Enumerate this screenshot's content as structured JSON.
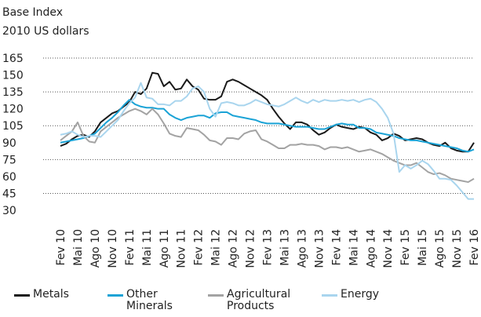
{
  "chart_data": {
    "type": "line",
    "title": "Base Index",
    "subtitle": "2010 US dollars",
    "categories": [
      "Fev 10",
      null,
      null,
      "Mai 10",
      null,
      null,
      "Ago 10",
      null,
      null,
      "Nov 10",
      null,
      null,
      "Fev 11",
      null,
      null,
      "Mai 11",
      null,
      null,
      "Ago 11",
      null,
      null,
      "Nov 11",
      null,
      null,
      "Fev 12",
      null,
      null,
      "Mai 12",
      null,
      null,
      "Ago 12",
      null,
      null,
      "Nov 12",
      null,
      null,
      "Fev 13",
      null,
      null,
      "Mai 13",
      null,
      null,
      "Ago 13",
      null,
      null,
      "Nov 13",
      null,
      null,
      "Fev 14",
      null,
      null,
      "Mai 14",
      null,
      null,
      "Ago 14",
      null,
      null,
      "Nov 14",
      null,
      null,
      "Fev 15",
      null,
      null,
      "Mai 15",
      null,
      null,
      "Ago 15",
      null,
      null,
      "Nov 15",
      null,
      null,
      "Fev 16"
    ],
    "series": [
      {
        "name": "Metals",
        "color": "#1a1a1a",
        "values": [
          87,
          89,
          93,
          96,
          97,
          95,
          100,
          108,
          112,
          116,
          118,
          122,
          126,
          135,
          133,
          138,
          152,
          151,
          140,
          144,
          137,
          138,
          146,
          140,
          137,
          129,
          128,
          128,
          131,
          144,
          146,
          144,
          141,
          138,
          135,
          132,
          128,
          120,
          113,
          107,
          102,
          108,
          108,
          106,
          101,
          97,
          99,
          103,
          106,
          104,
          103,
          102,
          104,
          103,
          99,
          97,
          92,
          94,
          98,
          96,
          92,
          93,
          94,
          93,
          90,
          88,
          87,
          90,
          85,
          83,
          82,
          82,
          90
        ]
      },
      {
        "name": "Other Minerals",
        "color": "#1ba3d6",
        "values": [
          90,
          91,
          92,
          93,
          94,
          96,
          98,
          103,
          108,
          112,
          117,
          123,
          128,
          124,
          122,
          121,
          121,
          120,
          120,
          115,
          112,
          110,
          112,
          113,
          114,
          114,
          112,
          116,
          117,
          117,
          114,
          113,
          112,
          111,
          110,
          108,
          107,
          107,
          107,
          106,
          105,
          104,
          104,
          104,
          103,
          102,
          102,
          104,
          106,
          107,
          106,
          106,
          103,
          103,
          102,
          99,
          98,
          97,
          96,
          94,
          93,
          92,
          92,
          91,
          90,
          89,
          88,
          87,
          86,
          85,
          83,
          82,
          84
        ]
      },
      {
        "name": "Agricultural Products",
        "color": "#a3a3a3",
        "values": [
          92,
          96,
          100,
          108,
          96,
          91,
          90,
          100,
          104,
          108,
          112,
          115,
          118,
          120,
          118,
          115,
          120,
          115,
          107,
          98,
          96,
          95,
          103,
          102,
          101,
          97,
          92,
          91,
          88,
          94,
          94,
          93,
          98,
          100,
          101,
          93,
          91,
          88,
          85,
          85,
          88,
          88,
          89,
          88,
          88,
          87,
          84,
          86,
          86,
          85,
          86,
          84,
          82,
          83,
          84,
          82,
          80,
          77,
          74,
          72,
          70,
          70,
          72,
          68,
          64,
          62,
          63,
          61,
          58,
          57,
          56,
          55,
          58
        ]
      },
      {
        "name": "Energy",
        "color": "#a9d5ee",
        "values": [
          97,
          98,
          100,
          97,
          95,
          96,
          96,
          95,
          100,
          105,
          110,
          118,
          125,
          130,
          143,
          130,
          129,
          124,
          124,
          123,
          127,
          127,
          131,
          138,
          140,
          135,
          120,
          113,
          125,
          126,
          125,
          123,
          123,
          125,
          128,
          126,
          124,
          123,
          122,
          124,
          127,
          130,
          127,
          125,
          128,
          126,
          128,
          127,
          127,
          128,
          127,
          128,
          126,
          128,
          129,
          126,
          120,
          112,
          98,
          64,
          70,
          67,
          70,
          74,
          71,
          65,
          58,
          58,
          57,
          52,
          46,
          40,
          40
        ]
      }
    ],
    "ylim": [
      30,
      165
    ],
    "yticks": [
      165,
      150,
      135,
      120,
      105,
      90,
      75,
      60,
      45,
      30
    ],
    "grid": true
  }
}
